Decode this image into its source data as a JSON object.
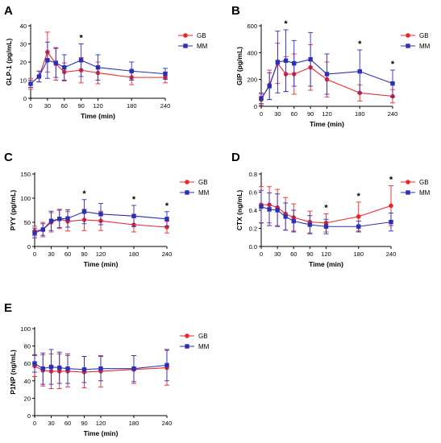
{
  "colors": {
    "GB": "#e8262b",
    "MM": "#2b2fb8",
    "axis": "#000000"
  },
  "chart_data": [
    {
      "panel": "A",
      "type": "line",
      "xlabel": "Time (min)",
      "ylabel": "GLP-1 (pg/mL)",
      "x": [
        0,
        15,
        30,
        45,
        60,
        90,
        120,
        180,
        240
      ],
      "xticks": [
        0,
        30,
        60,
        90,
        120,
        180,
        240
      ],
      "xlim": [
        0,
        240
      ],
      "yticks": [
        0,
        10,
        20,
        30,
        40
      ],
      "ylim": [
        0,
        40
      ],
      "series": [
        {
          "name": "GB",
          "values": [
            8,
            12,
            25.5,
            19,
            14.5,
            15.5,
            14,
            11.5,
            11.5
          ],
          "errors": [
            3,
            3,
            11,
            9,
            5,
            7,
            6,
            4,
            3
          ]
        },
        {
          "name": "MM",
          "values": [
            8,
            12,
            21,
            19.5,
            17,
            21,
            17,
            15,
            13.5
          ],
          "errors": [
            2,
            3,
            10,
            8,
            7,
            9,
            7,
            5,
            3
          ]
        }
      ],
      "significance": [
        {
          "x": 90,
          "label": "*"
        }
      ]
    },
    {
      "panel": "B",
      "type": "line",
      "xlabel": "Time (min)",
      "ylabel": "GIP (pg/mL)",
      "x": [
        0,
        15,
        30,
        45,
        60,
        90,
        120,
        180,
        240
      ],
      "xticks": [
        0,
        30,
        60,
        90,
        120,
        180,
        240
      ],
      "xlim": [
        0,
        240
      ],
      "yticks": [
        0,
        200,
        400,
        600
      ],
      "ylim": [
        0,
        600
      ],
      "series": [
        {
          "name": "GB",
          "values": [
            50,
            160,
            320,
            240,
            240,
            290,
            200,
            100,
            75
          ],
          "errors": [
            40,
            110,
            150,
            130,
            150,
            170,
            130,
            60,
            50
          ]
        },
        {
          "name": "MM",
          "values": [
            60,
            150,
            330,
            340,
            320,
            350,
            240,
            260,
            170
          ],
          "errors": [
            40,
            100,
            230,
            230,
            170,
            200,
            150,
            160,
            100
          ]
        }
      ],
      "significance": [
        {
          "x": 45,
          "label": "*"
        },
        {
          "x": 180,
          "label": "*"
        },
        {
          "x": 240,
          "label": "*"
        }
      ]
    },
    {
      "panel": "C",
      "type": "line",
      "xlabel": "Time (min)",
      "ylabel": "PYY (pg/mL)",
      "x": [
        0,
        15,
        30,
        45,
        60,
        90,
        120,
        180,
        240
      ],
      "xticks": [
        0,
        30,
        60,
        90,
        120,
        180,
        240
      ],
      "xlim": [
        0,
        240
      ],
      "yticks": [
        0,
        50,
        100,
        150
      ],
      "ylim": [
        0,
        150
      ],
      "series": [
        {
          "name": "GB",
          "values": [
            32,
            35,
            50,
            57,
            52,
            55,
            53,
            45,
            40
          ],
          "errors": [
            10,
            15,
            20,
            20,
            20,
            22,
            20,
            15,
            12
          ]
        },
        {
          "name": "MM",
          "values": [
            28,
            35,
            53,
            57,
            58,
            72,
            67,
            63,
            57
          ],
          "errors": [
            10,
            12,
            20,
            18,
            18,
            25,
            22,
            22,
            15
          ]
        }
      ],
      "significance": [
        {
          "x": 90,
          "label": "*"
        },
        {
          "x": 180,
          "label": "*"
        },
        {
          "x": 240,
          "label": "*"
        }
      ]
    },
    {
      "panel": "D",
      "type": "line",
      "xlabel": "Time (min)",
      "ylabel": "CTX (ng/mL)",
      "x": [
        0,
        15,
        30,
        45,
        60,
        90,
        120,
        180,
        240
      ],
      "xticks": [
        0,
        30,
        60,
        90,
        120,
        180,
        240
      ],
      "xlim": [
        0,
        240
      ],
      "yticks": [
        0.0,
        0.2,
        0.4,
        0.6,
        0.8
      ],
      "ylim": [
        0,
        0.8
      ],
      "series": [
        {
          "name": "GB",
          "values": [
            0.46,
            0.46,
            0.43,
            0.36,
            0.32,
            0.27,
            0.26,
            0.33,
            0.45
          ],
          "errors": [
            0.2,
            0.2,
            0.2,
            0.18,
            0.15,
            0.12,
            0.1,
            0.16,
            0.22
          ]
        },
        {
          "name": "MM",
          "values": [
            0.44,
            0.41,
            0.4,
            0.33,
            0.28,
            0.24,
            0.22,
            0.22,
            0.27
          ],
          "errors": [
            0.18,
            0.18,
            0.18,
            0.15,
            0.12,
            0.1,
            0.08,
            0.06,
            0.1
          ]
        }
      ],
      "significance": [
        {
          "x": 120,
          "label": "*"
        },
        {
          "x": 180,
          "label": "*"
        },
        {
          "x": 240,
          "label": "*"
        }
      ]
    },
    {
      "panel": "E",
      "type": "line",
      "xlabel": "Time (min)",
      "ylabel": "P1NP (ng/mL)",
      "x": [
        0,
        15,
        30,
        45,
        60,
        90,
        120,
        180,
        240
      ],
      "xticks": [
        0,
        30,
        60,
        90,
        120,
        180,
        240
      ],
      "xlim": [
        0,
        240
      ],
      "yticks": [
        0,
        20,
        40,
        60,
        80,
        100
      ],
      "ylim": [
        0,
        100
      ],
      "series": [
        {
          "name": "GB",
          "values": [
            57,
            52,
            51,
            51,
            51,
            50,
            51,
            53,
            55
          ],
          "errors": [
            12,
            18,
            20,
            20,
            18,
            18,
            18,
            16,
            20
          ]
        },
        {
          "name": "MM",
          "values": [
            60,
            54,
            56,
            55,
            54,
            53,
            54,
            54,
            58
          ],
          "errors": [
            10,
            18,
            20,
            18,
            17,
            15,
            14,
            15,
            18
          ]
        }
      ],
      "significance": []
    }
  ]
}
